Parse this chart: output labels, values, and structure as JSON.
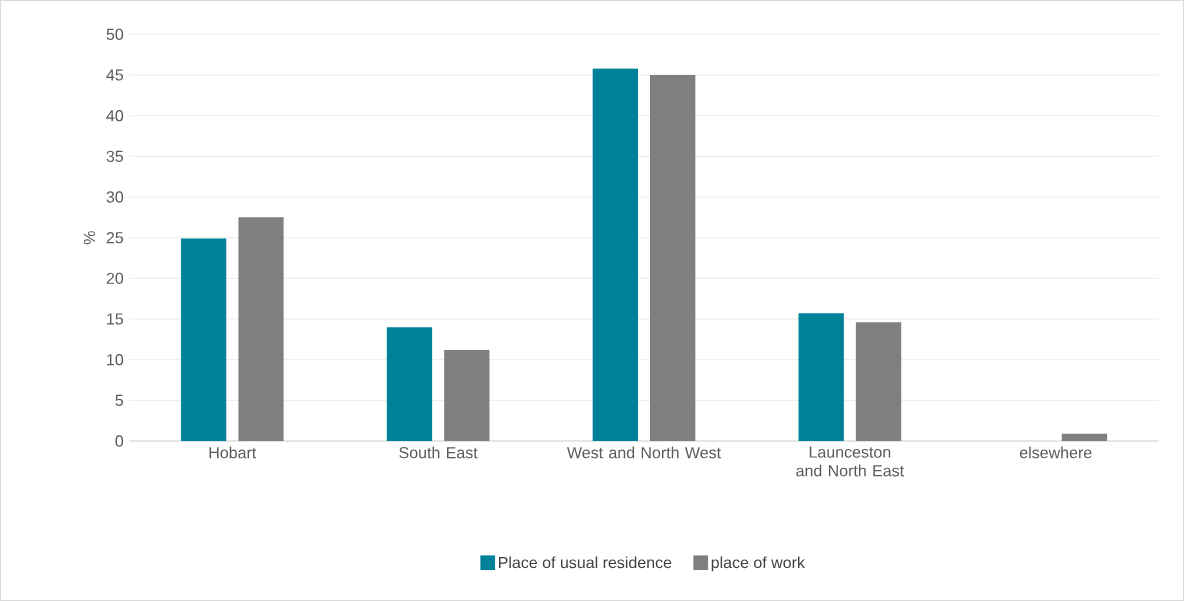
{
  "chart_data": {
    "type": "bar",
    "ylabel": "%",
    "categories": [
      "Hobart",
      "South East",
      "West and North West",
      "Launceston and North East",
      "elsewhere"
    ],
    "series": [
      {
        "name": "Place of usual residence",
        "color": "#00819a",
        "values": [
          24.9,
          14.0,
          45.8,
          15.7,
          0
        ]
      },
      {
        "name": "place of work",
        "color": "#7f7f7f",
        "values": [
          27.5,
          11.2,
          45.0,
          14.6,
          0.9
        ]
      }
    ],
    "ylim": [
      0,
      50
    ],
    "yticks": [
      0,
      5,
      10,
      15,
      20,
      25,
      30,
      35,
      40,
      45,
      50
    ],
    "grid": "y",
    "legend": "bottom"
  }
}
